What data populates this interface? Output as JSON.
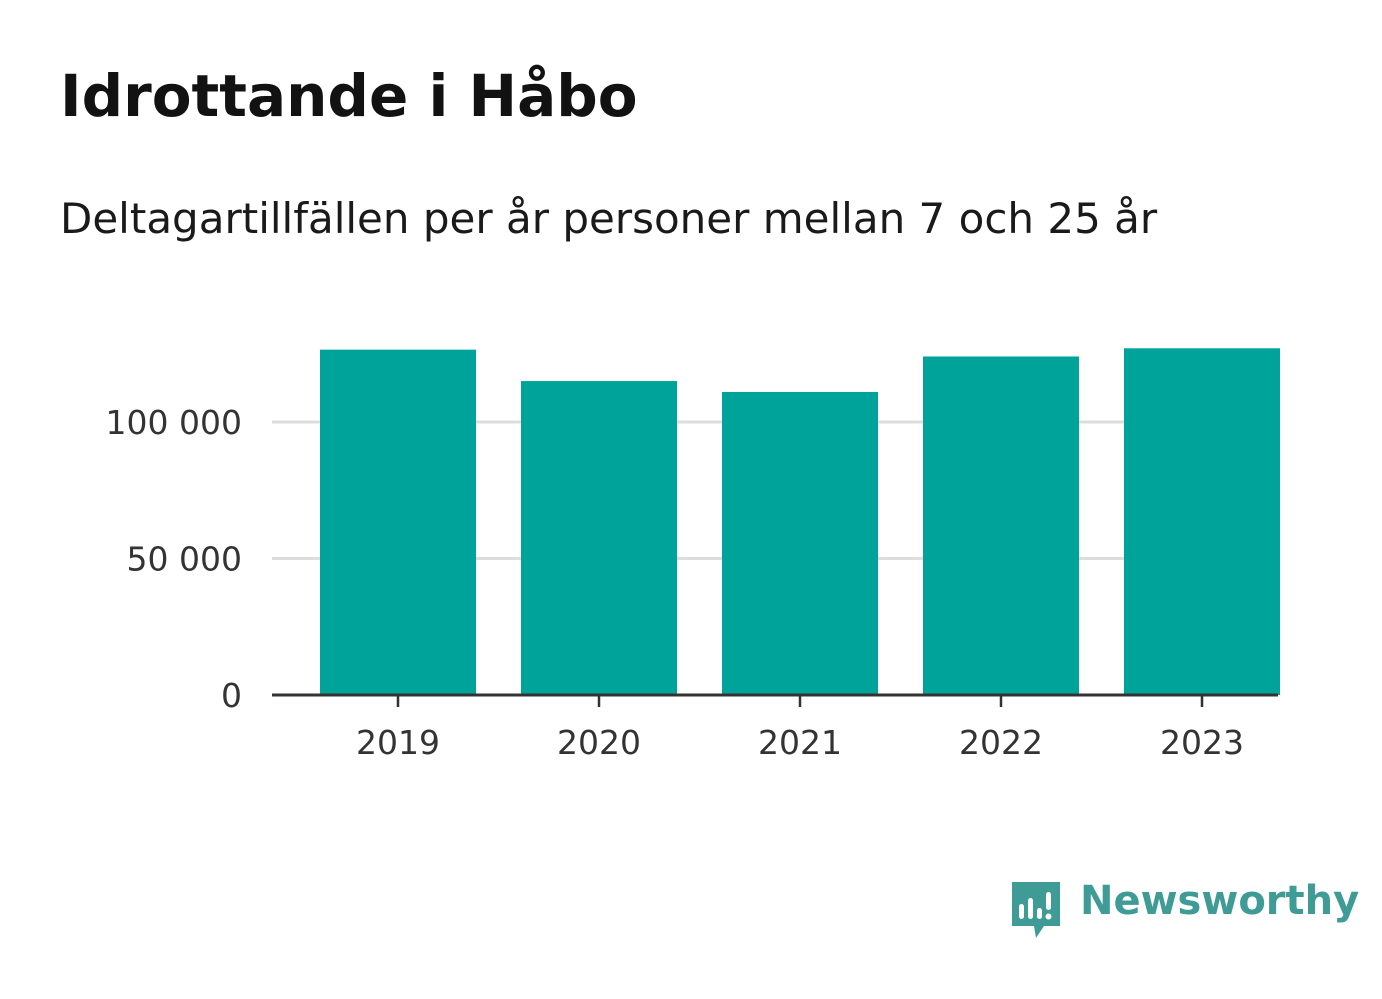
{
  "title": "Idrottande i Håbo",
  "subtitle": "Deltagartillfällen per år personer mellan 7 och 25 år",
  "brand": {
    "name": "Newsworthy",
    "icon": "newsworthy-logo-icon"
  },
  "colors": {
    "bar": "#00a39a",
    "grid": "#dddddd",
    "axis": "#333333",
    "brand": "#3f9b95"
  },
  "chart_data": {
    "type": "bar",
    "title": "Idrottande i Håbo",
    "subtitle": "Deltagartillfällen per år personer mellan 7 och 25 år",
    "categories": [
      "2019",
      "2020",
      "2021",
      "2022",
      "2023"
    ],
    "values": [
      126500,
      115000,
      111000,
      124000,
      127000
    ],
    "ylim": [
      0,
      132000
    ],
    "yticks": [
      0,
      50000,
      100000
    ],
    "ytick_labels": [
      "0",
      "50 000",
      "100 000"
    ],
    "xlabel": "",
    "ylabel": "",
    "grid": true,
    "legend": "none"
  }
}
